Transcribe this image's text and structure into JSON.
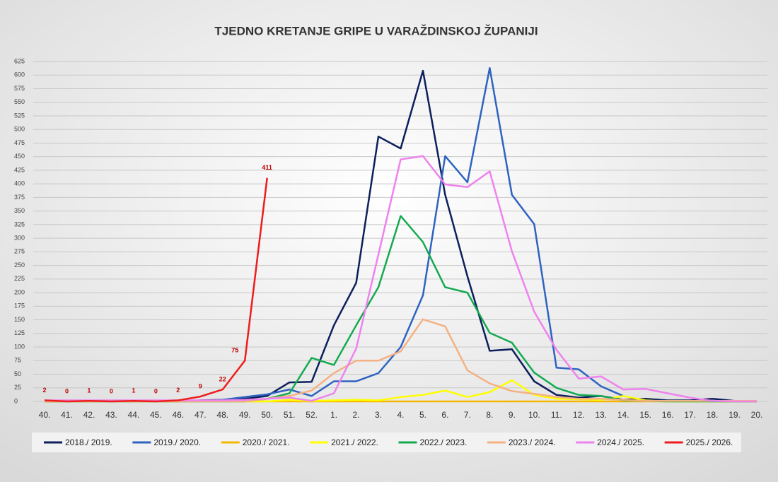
{
  "chart_data": {
    "type": "line",
    "title": "TJEDNO KRETANJE GRIPE U VARAŽDINSKOJ ŽUPANIJI",
    "categories": [
      "40.",
      "41.",
      "42.",
      "43.",
      "44.",
      "45.",
      "46.",
      "47.",
      "48.",
      "49.",
      "50.",
      "51.",
      "52.",
      "1.",
      "2.",
      "3.",
      "4.",
      "5.",
      "6.",
      "7.",
      "8.",
      "9.",
      "10.",
      "11.",
      "12.",
      "13.",
      "14.",
      "15.",
      "16.",
      "17.",
      "18.",
      "19.",
      "20."
    ],
    "ylim": [
      0,
      625
    ],
    "yticks": [
      0,
      25,
      50,
      75,
      100,
      125,
      150,
      175,
      200,
      225,
      250,
      275,
      300,
      325,
      350,
      375,
      400,
      425,
      450,
      475,
      500,
      525,
      550,
      575,
      600,
      625
    ],
    "grid": true,
    "series": [
      {
        "name": "2018./ 2019.",
        "color": "#0d1f5c",
        "values": [
          0,
          0,
          0,
          0,
          0,
          0,
          0,
          2,
          3,
          5,
          10,
          35,
          36,
          140,
          218,
          487,
          465,
          608,
          380,
          230,
          93,
          96,
          37,
          12,
          7,
          10,
          3,
          5,
          2,
          2,
          5,
          1,
          0
        ]
      },
      {
        "name": "2019./ 2020.",
        "color": "#2e63c0",
        "values": [
          0,
          0,
          0,
          0,
          0,
          0,
          0,
          0,
          3,
          8,
          13,
          22,
          10,
          37,
          37,
          52,
          100,
          195,
          451,
          403,
          613,
          380,
          326,
          62,
          59,
          28,
          10,
          null,
          null,
          null,
          null,
          null,
          null
        ]
      },
      {
        "name": "2020./ 2021.",
        "color": "#f5b800",
        "values": [
          0,
          0,
          0,
          0,
          0,
          0,
          0,
          0,
          0,
          0,
          0,
          0,
          0,
          0,
          0,
          0,
          0,
          0,
          0,
          0,
          0,
          0,
          0,
          0,
          0,
          0,
          0,
          0,
          0,
          0,
          0,
          0,
          0
        ]
      },
      {
        "name": "2021./ 2022.",
        "color": "#ffff00",
        "values": [
          0,
          0,
          0,
          0,
          0,
          0,
          0,
          0,
          0,
          0,
          0,
          3,
          1,
          2,
          3,
          2,
          8,
          12,
          20,
          8,
          17,
          39,
          12,
          5,
          4,
          3,
          10,
          2,
          0,
          0,
          0,
          0,
          0
        ]
      },
      {
        "name": "2022./ 2023.",
        "color": "#13aa50",
        "values": [
          0,
          0,
          0,
          0,
          0,
          0,
          0,
          0,
          0,
          0,
          5,
          15,
          80,
          67,
          140,
          210,
          341,
          293,
          210,
          200,
          126,
          108,
          53,
          25,
          12,
          10,
          2,
          1,
          0,
          0,
          0,
          0,
          0
        ]
      },
      {
        "name": "2023./ 2024.",
        "color": "#f4b183",
        "values": [
          0,
          0,
          0,
          0,
          0,
          0,
          0,
          0,
          0,
          0,
          5,
          10,
          20,
          52,
          75,
          75,
          92,
          151,
          138,
          57,
          33,
          19,
          14,
          8,
          5,
          5,
          3,
          1,
          1,
          1,
          1,
          1,
          1
        ]
      },
      {
        "name": "2024./ 2025.",
        "color": "#ee82ee",
        "values": [
          2,
          2,
          2,
          2,
          2,
          2,
          2,
          2,
          2,
          3,
          5,
          7,
          1,
          15,
          97,
          270,
          445,
          451,
          399,
          394,
          423,
          276,
          165,
          95,
          42,
          46,
          22,
          23,
          15,
          7,
          1,
          0,
          0
        ]
      },
      {
        "name": "2025./ 2026.",
        "color": "#ee1c1c",
        "values": [
          2,
          0,
          1,
          0,
          1,
          0,
          2,
          9,
          22,
          75,
          411,
          null,
          null,
          null,
          null,
          null,
          null,
          null,
          null,
          null,
          null,
          null,
          null,
          null,
          null,
          null,
          null,
          null,
          null,
          null,
          null,
          null,
          null
        ],
        "data_labels": true
      }
    ]
  }
}
